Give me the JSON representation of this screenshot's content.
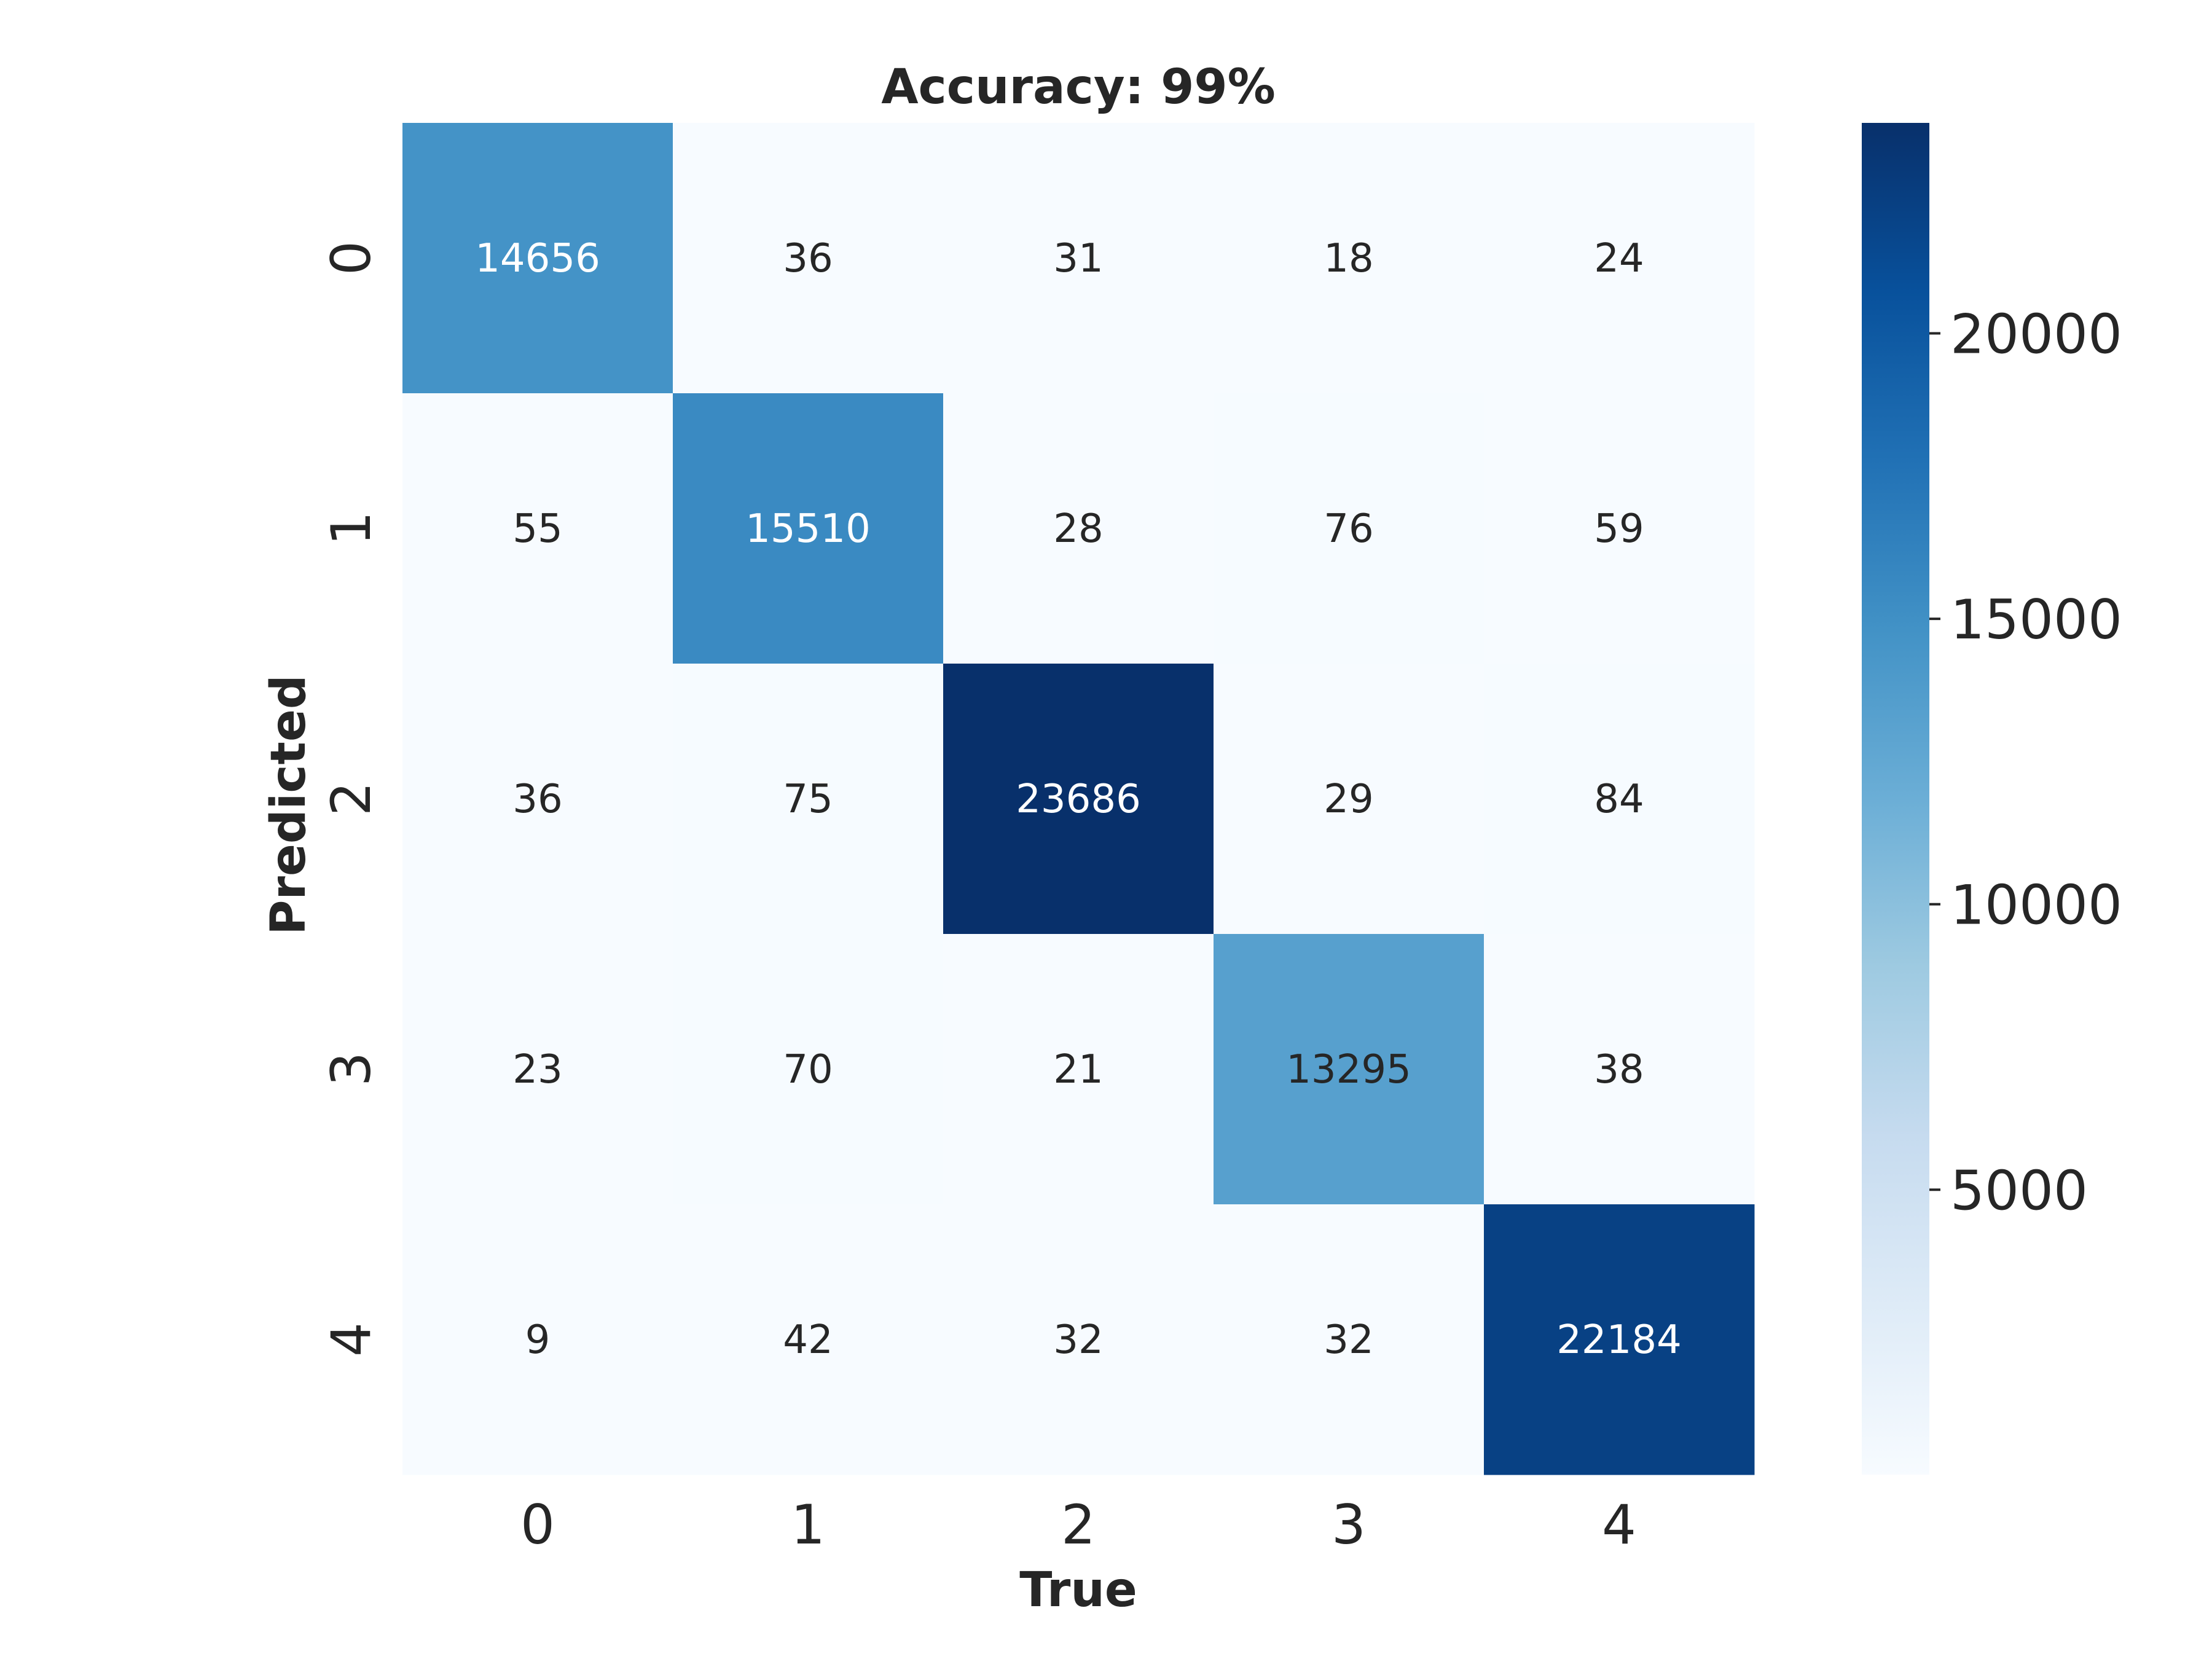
{
  "chart_data": {
    "type": "heatmap",
    "title": "Accuracy: 99%",
    "xlabel": "True",
    "ylabel": "Predicted",
    "x_categories": [
      "0",
      "1",
      "2",
      "3",
      "4"
    ],
    "y_categories": [
      "0",
      "1",
      "2",
      "3",
      "4"
    ],
    "values": [
      [
        14656,
        36,
        31,
        18,
        24
      ],
      [
        55,
        15510,
        28,
        76,
        59
      ],
      [
        36,
        75,
        23686,
        29,
        84
      ],
      [
        23,
        70,
        21,
        13295,
        38
      ],
      [
        9,
        42,
        32,
        32,
        22184
      ]
    ],
    "colormap": "Blues",
    "colorbar": {
      "range": [
        9,
        23686
      ],
      "ticks": [
        5000,
        10000,
        15000,
        20000
      ],
      "tick_labels": [
        "5000",
        "10000",
        "15000",
        "20000"
      ]
    }
  }
}
